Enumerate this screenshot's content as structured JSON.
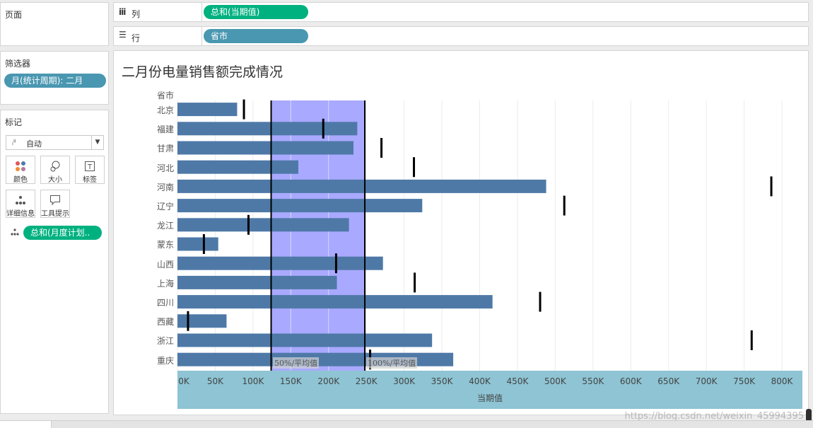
{
  "left": {
    "pages_title": "页面",
    "filters_title": "筛选器",
    "filter_pill": "月(统计周期): 二月",
    "marks_title": "标记",
    "mark_type": "自动",
    "buttons": [
      {
        "name": "color",
        "label": "颜色"
      },
      {
        "name": "size",
        "label": "大小"
      },
      {
        "name": "text",
        "label": "标签"
      },
      {
        "name": "detail",
        "label": "详细信息"
      },
      {
        "name": "tooltip",
        "label": "工具提示"
      }
    ],
    "marks_pill": "总和(月度计划.."
  },
  "shelves": {
    "columns_label": "列",
    "columns_pill": "总和(当期值)",
    "rows_label": "行",
    "rows_pill": "省市"
  },
  "view": {
    "title": "二月份电量销售额完成情况",
    "row_header": "省市",
    "ref_label_50": "50%/平均值",
    "ref_label_100": "100%/平均值",
    "axis_title": "当期值",
    "watermark": "https://blog.csdn.net/weixin_45994395"
  },
  "colors": {
    "bar": "#4e79a7",
    "band": "#a9a9ff",
    "axis_band": "#8ec4d3",
    "target": "#000000"
  },
  "chart_data": {
    "type": "bar",
    "orientation": "horizontal",
    "title": "二月份电量销售额完成情况",
    "xlabel": "当期值",
    "ylabel": "省市",
    "xlim": [
      0,
      830000
    ],
    "xticks": [
      "0K",
      "50K",
      "100K",
      "150K",
      "200K",
      "250K",
      "300K",
      "350K",
      "400K",
      "450K",
      "500K",
      "550K",
      "600K",
      "650K",
      "700K",
      "750K",
      "800K"
    ],
    "categories": [
      "北京",
      "福建",
      "甘肃",
      "河北",
      "河南",
      "辽宁",
      "龙江",
      "蒙东",
      "山西",
      "上海",
      "四川",
      "西藏",
      "浙江",
      "重庆"
    ],
    "series": [
      {
        "name": "总和(当期值)",
        "values": [
          79000,
          238000,
          233000,
          160000,
          488000,
          324000,
          227000,
          54000,
          272000,
          211000,
          417000,
          65000,
          337000,
          365000
        ]
      }
    ],
    "targets": {
      "name": "总和(月度计划..",
      "values": [
        88000,
        193000,
        270000,
        313000,
        786000,
        512000,
        94000,
        35000,
        210000,
        314000,
        480000,
        14000,
        760000,
        255000
      ]
    },
    "reference_band": {
      "from_label": "50%/平均值",
      "to_label": "100%/平均值",
      "from": 124000,
      "to": 248000
    }
  }
}
